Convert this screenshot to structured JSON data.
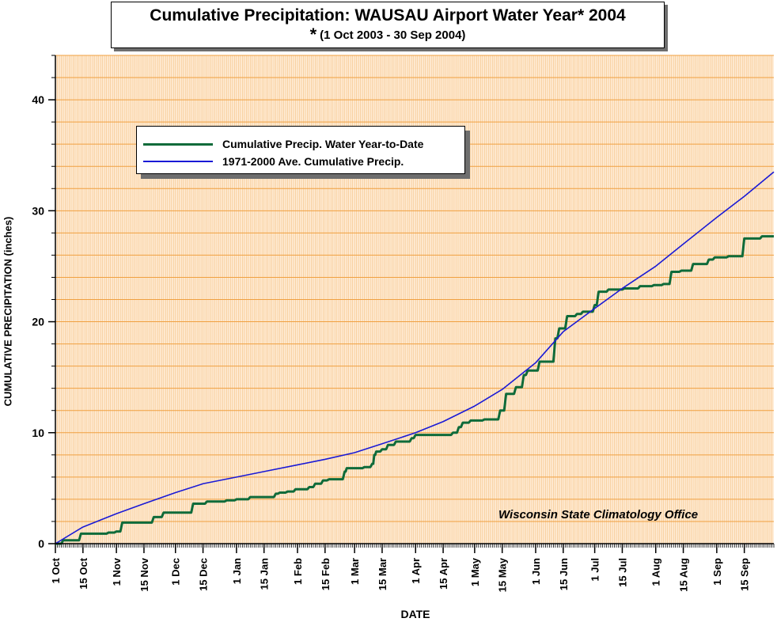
{
  "title": {
    "main": "Cumulative Precipitation: WAUSAU Airport Water Year* 2004",
    "sub_star": "*",
    "sub": "(1 Oct 2003 - 30 Sep 2004)"
  },
  "legend": {
    "items": [
      {
        "label": "Cumulative Precip.  Water Year-to-Date",
        "color": "#0f6b3a"
      },
      {
        "label": "1971-2000 Ave. Cumulative Precip.",
        "color": "#1a1ad6"
      }
    ]
  },
  "credit": "Wisconsin State Climatology Office",
  "colors": {
    "plot_bg": "#ffecd6",
    "grid_major": "#f0a040",
    "grid_minor": "#f5c488",
    "actual": "#0f6b3a",
    "average": "#1a1ad6"
  },
  "chart_data": {
    "type": "line",
    "title": "Cumulative Precipitation: WAUSAU Airport Water Year* 2004",
    "subtitle": "* (1 Oct 2003 - 30 Sep 2004)",
    "xlabel": "DATE",
    "ylabel": "CUMULATIVE PRECIPITATION (inches)",
    "ylim": [
      0,
      44
    ],
    "xlim": [
      "2003-10-01",
      "2004-09-30"
    ],
    "yticks": [
      0,
      10,
      20,
      30,
      40
    ],
    "ytick_labels": [
      "0",
      "10",
      "20",
      "30",
      "40"
    ],
    "xticks": [
      "2003-10-01",
      "2003-10-15",
      "2003-11-01",
      "2003-11-15",
      "2003-12-01",
      "2003-12-15",
      "2004-01-01",
      "2004-01-15",
      "2004-02-01",
      "2004-02-15",
      "2004-03-01",
      "2004-03-15",
      "2004-04-01",
      "2004-04-15",
      "2004-05-01",
      "2004-05-15",
      "2004-06-01",
      "2004-06-15",
      "2004-07-01",
      "2004-07-15",
      "2004-08-01",
      "2004-08-15",
      "2004-09-01",
      "2004-09-15"
    ],
    "xtick_labels": [
      "1 Oct",
      "15 Oct",
      "1 Nov",
      "15 Nov",
      "1 Dec",
      "15 Dec",
      "1 Jan",
      "15 Jan",
      "1 Feb",
      "15 Feb",
      "1 Mar",
      "15 Mar",
      "1 Apr",
      "15 Apr",
      "1 May",
      "15 May",
      "1 Jun",
      "15 Jun",
      "1 Jul",
      "15 Jul",
      "1 Aug",
      "15 Aug",
      "1 Sep",
      "15 Sep"
    ],
    "grid": true,
    "legend_position": "top-left",
    "series": [
      {
        "name": "Cumulative Precip.  Water Year-to-Date",
        "step": true,
        "points": [
          [
            "2003-10-01",
            0
          ],
          [
            "2003-10-05",
            0.3
          ],
          [
            "2003-10-14",
            0.9
          ],
          [
            "2003-10-28",
            1.0
          ],
          [
            "2003-11-01",
            1.1
          ],
          [
            "2003-11-04",
            1.9
          ],
          [
            "2003-11-20",
            2.4
          ],
          [
            "2003-11-25",
            2.8
          ],
          [
            "2003-12-10",
            3.6
          ],
          [
            "2003-12-17",
            3.8
          ],
          [
            "2003-12-27",
            3.9
          ],
          [
            "2004-01-01",
            4.0
          ],
          [
            "2004-01-08",
            4.2
          ],
          [
            "2004-01-17",
            4.2
          ],
          [
            "2004-01-21",
            4.5
          ],
          [
            "2004-01-23",
            4.6
          ],
          [
            "2004-01-27",
            4.7
          ],
          [
            "2004-01-31",
            4.9
          ],
          [
            "2004-02-07",
            5.1
          ],
          [
            "2004-02-10",
            5.4
          ],
          [
            "2004-02-14",
            5.7
          ],
          [
            "2004-02-17",
            5.8
          ],
          [
            "2004-02-25",
            6.5
          ],
          [
            "2004-02-26",
            6.8
          ],
          [
            "2004-03-06",
            6.9
          ],
          [
            "2004-03-10",
            7.2
          ],
          [
            "2004-03-11",
            8.0
          ],
          [
            "2004-03-12",
            8.3
          ],
          [
            "2004-03-15",
            8.5
          ],
          [
            "2004-03-18",
            8.9
          ],
          [
            "2004-03-22",
            9.2
          ],
          [
            "2004-03-30",
            9.5
          ],
          [
            "2004-04-01",
            9.8
          ],
          [
            "2004-04-07",
            9.8
          ],
          [
            "2004-04-14",
            9.8
          ],
          [
            "2004-04-20",
            10.0
          ],
          [
            "2004-04-23",
            10.5
          ],
          [
            "2004-04-25",
            10.9
          ],
          [
            "2004-04-29",
            11.1
          ],
          [
            "2004-05-06",
            11.2
          ],
          [
            "2004-05-12",
            11.2
          ],
          [
            "2004-05-14",
            12.0
          ],
          [
            "2004-05-17",
            13.5
          ],
          [
            "2004-05-22",
            14.1
          ],
          [
            "2004-05-26",
            15.2
          ],
          [
            "2004-05-28",
            15.6
          ],
          [
            "2004-06-03",
            16.4
          ],
          [
            "2004-06-09",
            16.4
          ],
          [
            "2004-06-11",
            18.5
          ],
          [
            "2004-06-13",
            19.4
          ],
          [
            "2004-06-17",
            20.5
          ],
          [
            "2004-06-22",
            20.7
          ],
          [
            "2004-06-25",
            20.9
          ],
          [
            "2004-07-01",
            21.5
          ],
          [
            "2004-07-03",
            22.7
          ],
          [
            "2004-07-08",
            22.9
          ],
          [
            "2004-07-16",
            23.0
          ],
          [
            "2004-07-24",
            23.2
          ],
          [
            "2004-07-31",
            23.3
          ],
          [
            "2004-08-05",
            23.4
          ],
          [
            "2004-08-09",
            24.5
          ],
          [
            "2004-08-14",
            24.6
          ],
          [
            "2004-08-20",
            25.2
          ],
          [
            "2004-08-28",
            25.6
          ],
          [
            "2004-08-31",
            25.8
          ],
          [
            "2004-09-07",
            25.9
          ],
          [
            "2004-09-13",
            25.9
          ],
          [
            "2004-09-15",
            27.5
          ],
          [
            "2004-09-24",
            27.7
          ],
          [
            "2004-09-30",
            27.7
          ]
        ]
      },
      {
        "name": "1971-2000 Ave. Cumulative Precip.",
        "step": false,
        "points": [
          [
            "2003-10-01",
            0
          ],
          [
            "2003-10-15",
            1.5
          ],
          [
            "2003-11-01",
            2.7
          ],
          [
            "2003-11-15",
            3.6
          ],
          [
            "2003-12-01",
            4.6
          ],
          [
            "2003-12-15",
            5.4
          ],
          [
            "2004-01-01",
            6.0
          ],
          [
            "2004-01-15",
            6.5
          ],
          [
            "2004-02-01",
            7.1
          ],
          [
            "2004-02-15",
            7.6
          ],
          [
            "2004-03-01",
            8.2
          ],
          [
            "2004-03-15",
            9.0
          ],
          [
            "2004-04-01",
            10.0
          ],
          [
            "2004-04-15",
            11.0
          ],
          [
            "2004-05-01",
            12.4
          ],
          [
            "2004-05-15",
            13.9
          ],
          [
            "2004-06-01",
            16.3
          ],
          [
            "2004-06-15",
            19.1
          ],
          [
            "2004-07-01",
            21.2
          ],
          [
            "2004-07-15",
            23.0
          ],
          [
            "2004-08-01",
            25.0
          ],
          [
            "2004-08-15",
            27.0
          ],
          [
            "2004-09-01",
            29.4
          ],
          [
            "2004-09-15",
            31.3
          ],
          [
            "2004-09-30",
            33.5
          ]
        ]
      }
    ]
  }
}
